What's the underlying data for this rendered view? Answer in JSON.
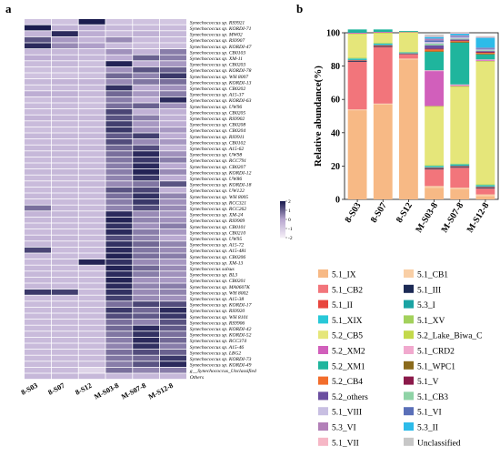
{
  "panel_a_label": "a",
  "panel_b_label": "b",
  "chart_data": [
    {
      "type": "heatmap",
      "columns": [
        "8-S03",
        "8-S07",
        "8-S12",
        "M-S03-8",
        "M-S07-8",
        "M-S12-8"
      ],
      "row_labels": [
        "Synechococcus sp. RS9921",
        "Synechococcus sp. KORDI-71",
        "Synechococcus sp. MW02",
        "Synechococcus sp. RS9907",
        "Synechococcus sp. KORDI-47",
        "Synechococcus sp. CB0103",
        "Synechococcus sp. XM-11",
        "Synechococcus sp. CB0203",
        "Synechococcus sp. KORDI-78",
        "Synechococcus sp. WH 8007",
        "Synechococcus sp. KORDI-13",
        "Synechococcus sp. CB0202",
        "Synechococcus sp. A15-37",
        "Synechococcus sp. KORDI-63",
        "Synechococcus sp. UW96",
        "Synechococcus sp. CB0205",
        "Synechococcus sp. RS9902",
        "Synechococcus sp. CB0208",
        "Synechococcus sp. CB0204",
        "Synechococcus sp. RS9911",
        "Synechococcus sp. CB0102",
        "Synechococcus sp. A15-62",
        "Synechococcus sp. UW98",
        "Synechococcus sp. RCC791",
        "Synechococcus sp. CB0207",
        "Synechococcus sp. KORDI-12",
        "Synechococcus sp. UW86",
        "Synechococcus sp. KORDI-18",
        "Synechococcus sp. UW122",
        "Synechococcus sp. WH 8005",
        "Synechococcus sp. RCC321",
        "Synechococcus sp. RCC262",
        "Synechococcus sp. XM-24",
        "Synechococcus sp. RS9909",
        "Synechococcus sp. CB0101",
        "Synechococcus sp. CB0210",
        "Synechococcus sp. UW95",
        "Synechococcus sp. A15-72",
        "Synechococcus sp. A15-481",
        "Synechococcus sp. CB0206",
        "Synechococcus sp. XM-13",
        "Synechococcus salsus",
        "Synechococcus sp. BL3",
        "Synechococcus sp. CB0201",
        "Synechococcus sp. MA0607K",
        "Synechococcus sp. WH 8002",
        "Synechococcus sp. A15-38",
        "Synechococcus sp. KORDI-17",
        "Synechococcus sp. RS9920",
        "Synechococcus sp. WH 8101",
        "Synechococcus sp. RS9906",
        "Synechococcus sp. KORDI-42",
        "Synechococcus sp. KORDI-52",
        "Synechococcus sp. RCC374",
        "Synechococcus sp. A15-46",
        "Synechococcus sp. LBG2",
        "Synechococcus sp. KORDI-73",
        "Synechococcus sp. KORDI-49",
        "g__Synechococcus_Unclassified",
        "Others"
      ],
      "values": [
        [
          -0.8,
          -0.8,
          2.0,
          -0.8,
          -0.8,
          -0.9
        ],
        [
          2.0,
          -0.3,
          -0.1,
          -0.5,
          -0.6,
          -0.6
        ],
        [
          -0.4,
          1.8,
          -0.2,
          -0.6,
          -0.3,
          -0.5
        ],
        [
          1.2,
          0.2,
          -0.4,
          0.4,
          -0.6,
          -0.6
        ],
        [
          1.8,
          0.4,
          0.1,
          -0.6,
          -0.7,
          -0.7
        ],
        [
          -0.5,
          -0.5,
          -0.5,
          0.3,
          -0.4,
          0.6
        ],
        [
          -0.2,
          -0.4,
          -0.5,
          -0.2,
          1.0,
          0.6
        ],
        [
          -0.6,
          -0.5,
          -0.7,
          1.9,
          -0.2,
          0.2
        ],
        [
          -0.7,
          -0.7,
          -0.6,
          0.3,
          1.2,
          1.0
        ],
        [
          -0.8,
          -0.8,
          -0.7,
          0.9,
          0.5,
          1.6
        ],
        [
          -0.5,
          -0.4,
          -0.4,
          0.4,
          0.7,
          0.8
        ],
        [
          -0.7,
          -0.6,
          -0.6,
          1.7,
          -0.1,
          0.3
        ],
        [
          -0.2,
          -0.3,
          -0.5,
          0.9,
          0.2,
          0.6
        ],
        [
          -0.7,
          -0.5,
          -0.7,
          0.6,
          -0.2,
          1.8
        ],
        [
          -0.6,
          -0.6,
          -0.7,
          0.8,
          1.0,
          0.3
        ],
        [
          -0.6,
          -0.6,
          -0.6,
          1.4,
          -0.3,
          -0.3
        ],
        [
          -0.4,
          -0.5,
          -0.5,
          1.2,
          0.6,
          -0.3
        ],
        [
          -0.6,
          -0.6,
          -0.6,
          1.5,
          0.2,
          -0.2
        ],
        [
          -0.7,
          -0.7,
          -0.6,
          1.6,
          0.3,
          0.2
        ],
        [
          -0.5,
          -0.5,
          -0.5,
          1.1,
          1.5,
          -0.2
        ],
        [
          -0.6,
          -0.6,
          -0.6,
          1.3,
          0.4,
          0.2
        ],
        [
          -0.5,
          -0.5,
          -0.5,
          0.9,
          1.3,
          -0.3
        ],
        [
          -0.5,
          -0.5,
          -0.6,
          0.8,
          1.8,
          0.3
        ],
        [
          -0.6,
          -0.6,
          -0.6,
          0.7,
          1.6,
          0.6
        ],
        [
          -0.6,
          -0.6,
          -0.6,
          0.6,
          1.8,
          -0.1
        ],
        [
          -0.5,
          -0.5,
          -0.5,
          0.6,
          1.9,
          0.4
        ],
        [
          -0.6,
          -0.6,
          -0.6,
          0.5,
          1.6,
          -0.2
        ],
        [
          -0.6,
          -0.6,
          -0.5,
          0.4,
          0.7,
          1.2
        ],
        [
          -0.6,
          -0.6,
          -0.6,
          1.2,
          1.4,
          -0.3
        ],
        [
          -0.5,
          -0.6,
          -0.6,
          0.8,
          1.7,
          0.5
        ],
        [
          -0.5,
          -0.6,
          -0.6,
          0.6,
          1.6,
          0.3
        ],
        [
          0.8,
          -0.5,
          -0.6,
          0.5,
          1.3,
          0.4
        ],
        [
          -0.4,
          -0.5,
          -0.6,
          1.8,
          0.4,
          0.2
        ],
        [
          -0.5,
          -0.6,
          -0.6,
          1.9,
          0.5,
          0.3
        ],
        [
          -0.6,
          -0.6,
          -0.6,
          1.7,
          0.3,
          0.6
        ],
        [
          -0.6,
          -0.6,
          -0.6,
          1.8,
          0.6,
          0.2
        ],
        [
          -0.4,
          -0.5,
          -0.6,
          1.3,
          0.5,
          -0.1
        ],
        [
          -0.5,
          -0.6,
          -0.6,
          1.7,
          0.9,
          0.5
        ],
        [
          1.4,
          -0.6,
          -0.6,
          1.8,
          0.7,
          0.4
        ],
        [
          -0.5,
          -0.6,
          -0.6,
          1.9,
          0.8,
          0.6
        ],
        [
          -0.6,
          -0.5,
          1.9,
          1.7,
          0.4,
          0.2
        ],
        [
          -0.5,
          -0.6,
          -0.6,
          1.9,
          0.9,
          0.4
        ],
        [
          -0.5,
          -0.6,
          -0.6,
          1.8,
          0.6,
          0.3
        ],
        [
          -0.5,
          -0.6,
          -0.6,
          1.9,
          0.3,
          0.2
        ],
        [
          -0.5,
          -0.6,
          -0.6,
          1.8,
          0.5,
          0.6
        ],
        [
          1.6,
          1.5,
          -0.6,
          1.7,
          0.4,
          0.5
        ],
        [
          -0.6,
          -0.6,
          -0.6,
          1.5,
          0.4,
          0.3
        ],
        [
          -0.6,
          -0.6,
          -0.6,
          0.8,
          1.4,
          1.3
        ],
        [
          -0.6,
          -0.6,
          -0.6,
          1.6,
          0.9,
          1.8
        ],
        [
          -0.6,
          -0.6,
          -0.6,
          1.3,
          1.1,
          1.6
        ],
        [
          -0.6,
          -0.6,
          -0.6,
          0.8,
          0.5,
          1.2
        ],
        [
          -0.6,
          -0.6,
          -0.6,
          0.9,
          1.8,
          1.1
        ],
        [
          -0.6,
          -0.6,
          -0.6,
          0.7,
          1.7,
          0.8
        ],
        [
          -0.6,
          -0.6,
          -0.6,
          0.6,
          1.8,
          0.9
        ],
        [
          -0.6,
          -0.6,
          -0.6,
          0.5,
          1.7,
          0.6
        ],
        [
          -0.6,
          -0.6,
          -0.6,
          0.8,
          1.3,
          1.0
        ],
        [
          -0.6,
          -0.6,
          -0.6,
          0.7,
          0.9,
          1.6
        ],
        [
          -0.6,
          -0.6,
          -0.6,
          0.6,
          1.2,
          1.8
        ],
        [
          -0.6,
          -0.6,
          -1.3,
          0.8,
          0.5,
          0.6
        ],
        [
          -0.5,
          -0.5,
          -0.5,
          -0.5,
          -0.5,
          -0.5
        ]
      ],
      "color_min": -2,
      "color_max": 2,
      "colorbar_ticks": [
        "2",
        "1",
        "0",
        "-1",
        "-2"
      ],
      "colors": {
        "low": "#f3edf6",
        "mid": "#b7a6cf",
        "high": "#1b1c4f"
      }
    },
    {
      "type": "stacked-bar",
      "categories": [
        "8-S03",
        "8-S07",
        "8-S12",
        "M-S03-8",
        "M-S07-8",
        "M-S12-8"
      ],
      "ylabel": "Relative abundance(%)",
      "ylim": [
        0,
        100
      ],
      "yticks": [
        0,
        20,
        40,
        60,
        80,
        100
      ],
      "series": [
        {
          "name": "5.1_IX",
          "color": "#f7b985",
          "values": [
            53.5,
            57.0,
            84.0,
            7.0,
            6.0,
            2.0
          ]
        },
        {
          "name": "5.1_CB1",
          "color": "#f9cfa6",
          "values": [
            0.5,
            0.5,
            0.5,
            1.0,
            1.0,
            1.0
          ]
        },
        {
          "name": "5.1_CB2",
          "color": "#f2757b",
          "values": [
            28.5,
            34.0,
            2.5,
            10.0,
            12.0,
            3.5
          ]
        },
        {
          "name": "5.1_III",
          "color": "#1c2a55",
          "values": [
            0.5,
            0.5,
            0.3,
            0.5,
            0.5,
            0.5
          ]
        },
        {
          "name": "5.1_II",
          "color": "#e8463e",
          "values": [
            0.5,
            0.5,
            0.3,
            0.5,
            0.5,
            0.5
          ]
        },
        {
          "name": "5.3_I",
          "color": "#1aa3a3",
          "values": [
            0.5,
            0.5,
            0.3,
            0.5,
            0.5,
            0.5
          ]
        },
        {
          "name": "5.1_XIX",
          "color": "#28c8d8",
          "values": [
            0.5,
            0.5,
            0.3,
            0.5,
            0.5,
            0.5
          ]
        },
        {
          "name": "5.1_XV",
          "color": "#a3d15c",
          "values": [
            0.5,
            0.5,
            0.3,
            0.5,
            0.5,
            0.5
          ]
        },
        {
          "name": "5.2_CB5",
          "color": "#e5e67a",
          "values": [
            14.0,
            5.5,
            11.5,
            35.0,
            46.0,
            73.5
          ]
        },
        {
          "name": "5.2_Lake_Biwa_C",
          "color": "#c3d94a",
          "values": [
            0.5,
            0.5,
            0.3,
            0.5,
            0.5,
            0.5
          ]
        },
        {
          "name": "5.2_XM2",
          "color": "#d15fbb",
          "values": [
            0.5,
            0.5,
            0.3,
            21.0,
            0.5,
            0.5
          ]
        },
        {
          "name": "5.1_CRD2",
          "color": "#f1a9ce",
          "values": [
            0.0,
            0.0,
            0.0,
            0.5,
            0.5,
            0.5
          ]
        },
        {
          "name": "5.2_XM1",
          "color": "#1fb59d",
          "values": [
            2.0,
            1.5,
            0.5,
            11.0,
            25.0,
            3.0
          ]
        },
        {
          "name": "5.1_WPC1",
          "color": "#8a6a1c",
          "values": [
            0.0,
            0.0,
            0.0,
            0.5,
            0.5,
            0.5
          ]
        },
        {
          "name": "5.2_CB4",
          "color": "#f26d2c",
          "values": [
            0.0,
            0.0,
            0.0,
            1.0,
            0.5,
            0.5
          ]
        },
        {
          "name": "5.1_V",
          "color": "#8b1a4a",
          "values": [
            0.0,
            0.0,
            0.0,
            0.5,
            0.5,
            0.5
          ]
        },
        {
          "name": "5.2_others",
          "color": "#6b4fa0",
          "values": [
            0.0,
            0.0,
            0.0,
            2.0,
            0.5,
            0.5
          ]
        },
        {
          "name": "5.1_CB3",
          "color": "#8fd3a6",
          "values": [
            0.0,
            0.0,
            0.0,
            1.0,
            0.5,
            0.5
          ]
        },
        {
          "name": "5.1_VIII",
          "color": "#c8bfe2",
          "values": [
            0.0,
            0.0,
            0.0,
            1.0,
            1.0,
            0.5
          ]
        },
        {
          "name": "5.1_VI",
          "color": "#5a6fb8",
          "values": [
            0.0,
            0.0,
            0.0,
            1.0,
            0.5,
            0.5
          ]
        },
        {
          "name": "5.3_VI",
          "color": "#b280b8",
          "values": [
            0.0,
            0.0,
            0.0,
            1.0,
            0.5,
            0.5
          ]
        },
        {
          "name": "5.3_II",
          "color": "#2dbbe9",
          "values": [
            0.0,
            0.0,
            0.0,
            1.0,
            1.0,
            6.0
          ]
        },
        {
          "name": "5.1_VII",
          "color": "#f6b7c6",
          "values": [
            0.0,
            0.0,
            0.0,
            0.5,
            0.5,
            0.5
          ]
        },
        {
          "name": "Unclassified",
          "color": "#c7c7c7",
          "values": [
            0.0,
            0.0,
            0.0,
            1.0,
            0.5,
            0.5
          ]
        }
      ]
    }
  ]
}
